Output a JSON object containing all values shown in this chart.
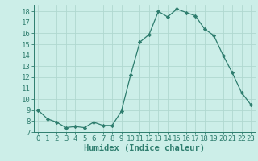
{
  "x": [
    0,
    1,
    2,
    3,
    4,
    5,
    6,
    7,
    8,
    9,
    10,
    11,
    12,
    13,
    14,
    15,
    16,
    17,
    18,
    19,
    20,
    21,
    22,
    23
  ],
  "y": [
    9.0,
    8.2,
    7.9,
    7.4,
    7.5,
    7.4,
    7.9,
    7.6,
    7.6,
    8.9,
    12.2,
    15.2,
    15.9,
    18.0,
    17.5,
    18.2,
    17.9,
    17.6,
    16.4,
    15.8,
    14.0,
    12.4,
    10.6,
    9.5
  ],
  "line_color": "#2e7d6e",
  "marker": "D",
  "marker_size": 2.2,
  "bg_color": "#cceee8",
  "grid_color": "#b0d8d0",
  "xlabel": "Humidex (Indice chaleur)",
  "xlim": [
    -0.5,
    23.5
  ],
  "ylim": [
    7,
    18.6
  ],
  "yticks": [
    7,
    8,
    9,
    10,
    11,
    12,
    13,
    14,
    15,
    16,
    17,
    18
  ],
  "xticks": [
    0,
    1,
    2,
    3,
    4,
    5,
    6,
    7,
    8,
    9,
    10,
    11,
    12,
    13,
    14,
    15,
    16,
    17,
    18,
    19,
    20,
    21,
    22,
    23
  ],
  "axis_color": "#2e7d6e",
  "tick_fontsize": 6.5,
  "xlabel_fontsize": 7.5
}
